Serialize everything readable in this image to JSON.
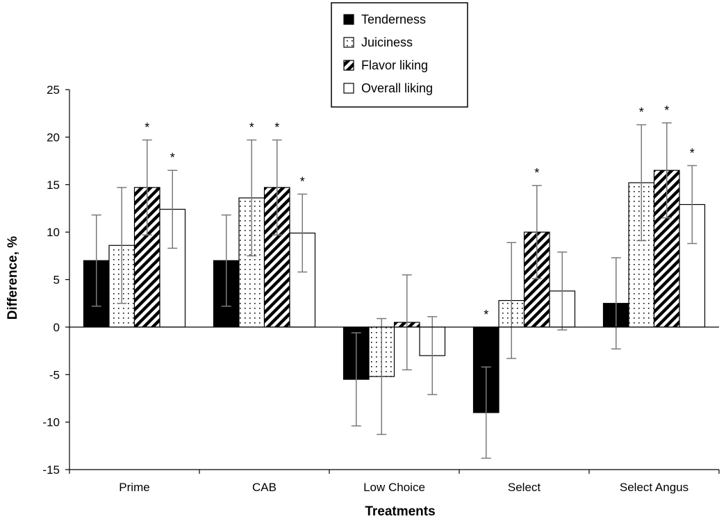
{
  "chart_data": {
    "type": "bar",
    "title": "",
    "xlabel": "Treatments",
    "ylabel": "Difference, %",
    "ylim": [
      -15,
      25
    ],
    "yticks": [
      -15,
      -10,
      -5,
      0,
      5,
      10,
      15,
      20,
      25
    ],
    "ytick_labels": [
      "-15",
      "-10",
      "-5",
      "0",
      "5",
      "10",
      "15",
      "20",
      "25"
    ],
    "categories": [
      "Prime",
      "CAB",
      "Low Choice",
      "Select",
      "Select Angus"
    ],
    "grid": false,
    "legend_position": "top-center",
    "significance_marker": "*",
    "series": [
      {
        "name": "Tenderness",
        "pattern": "solid-black",
        "values": [
          7.0,
          7.0,
          -5.5,
          -9.0,
          2.5
        ],
        "error": [
          4.8,
          4.8,
          4.9,
          4.8,
          4.8
        ],
        "significant": [
          false,
          false,
          false,
          true,
          false
        ]
      },
      {
        "name": "Juiciness",
        "pattern": "dotted",
        "values": [
          8.6,
          13.6,
          -5.2,
          2.8,
          15.2
        ],
        "error": [
          6.1,
          6.1,
          6.1,
          6.1,
          6.1
        ],
        "significant": [
          false,
          true,
          false,
          false,
          true
        ]
      },
      {
        "name": "Flavor liking",
        "pattern": "diagonal-hatch",
        "values": [
          14.7,
          14.7,
          0.5,
          10.0,
          16.5
        ],
        "error": [
          5.0,
          5.0,
          5.0,
          4.9,
          5.0
        ],
        "significant": [
          true,
          true,
          false,
          true,
          true
        ]
      },
      {
        "name": "Overall liking",
        "pattern": "white",
        "values": [
          12.4,
          9.9,
          -3.0,
          3.8,
          12.9
        ],
        "error": [
          4.1,
          4.1,
          4.1,
          4.1,
          4.1
        ],
        "significant": [
          true,
          true,
          false,
          false,
          true
        ]
      }
    ]
  }
}
